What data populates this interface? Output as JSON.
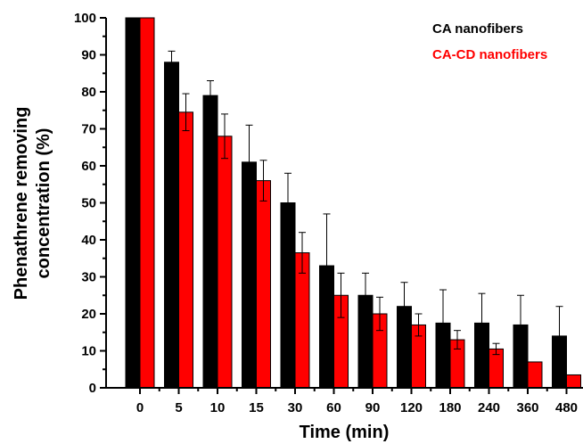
{
  "chart_data": {
    "type": "bar",
    "categories": [
      "0",
      "5",
      "10",
      "15",
      "30",
      "60",
      "90",
      "120",
      "180",
      "240",
      "360",
      "480"
    ],
    "xlabel": "Time (min)",
    "ylabel": [
      "Phenathrene removing",
      "concentration (%)"
    ],
    "ylim": [
      0,
      100
    ],
    "yticks": [
      "0",
      "10",
      "20",
      "30",
      "40",
      "50",
      "60",
      "70",
      "80",
      "90",
      "100"
    ],
    "grid": false,
    "legend_position": "top-right",
    "series": [
      {
        "name": "CA nanofibers",
        "color": "#000000",
        "values": [
          100,
          88,
          79,
          61,
          50,
          33,
          25,
          22,
          17.5,
          17.5,
          17,
          14
        ],
        "errors": [
          0,
          3,
          4,
          10,
          8,
          14,
          6,
          6.5,
          9,
          8,
          8,
          8
        ]
      },
      {
        "name": "CA-CD nanofibers",
        "color": "#ff0000",
        "values": [
          100,
          74.5,
          68,
          56,
          36.5,
          25,
          20,
          17,
          13,
          10.5,
          7,
          3.5
        ],
        "errors": [
          0,
          5,
          6,
          5.5,
          5.5,
          6,
          4.5,
          3,
          2.5,
          1.5,
          0,
          0
        ]
      }
    ]
  }
}
